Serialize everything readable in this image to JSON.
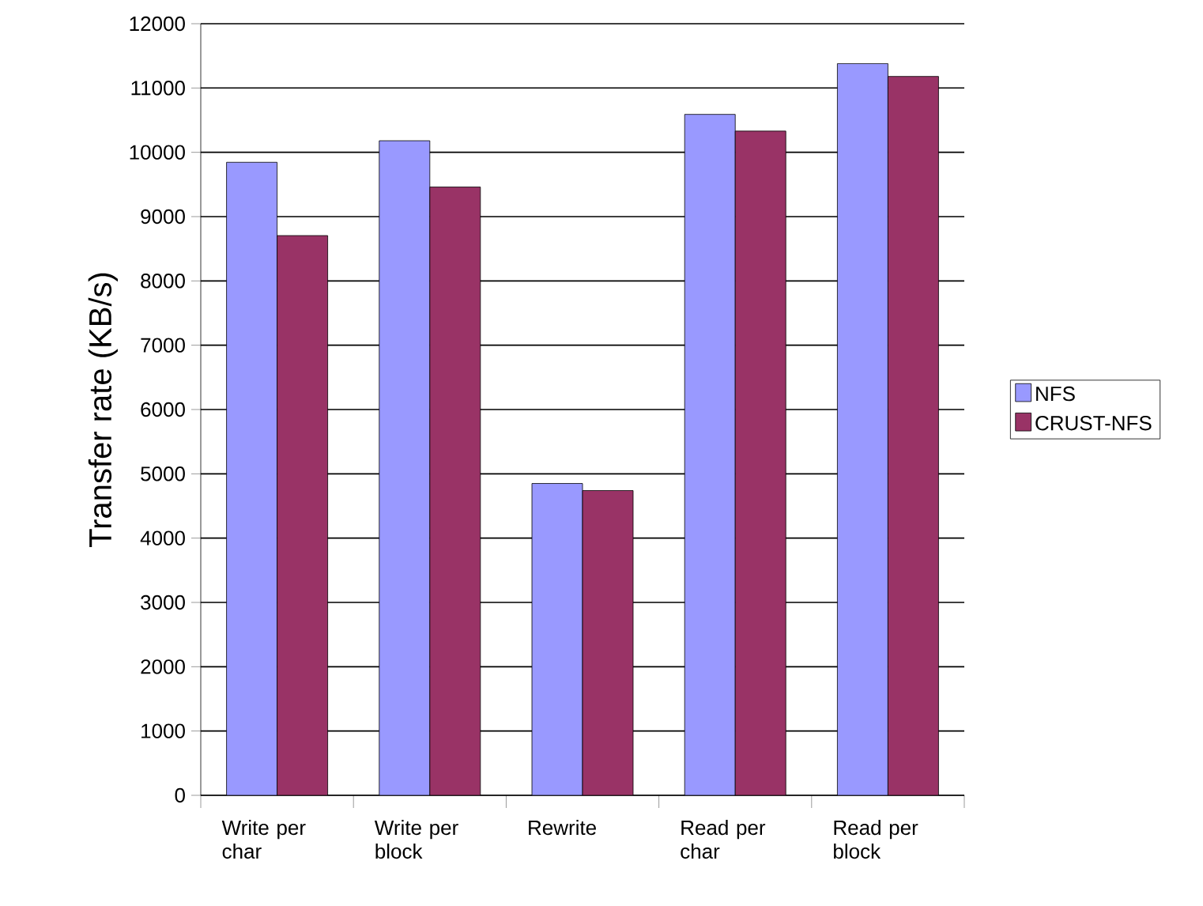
{
  "chart_data": {
    "type": "bar",
    "ylabel": "Transfer rate (KB/s)",
    "categories": [
      "Write per char",
      "Write per block",
      "Rewrite",
      "Read per char",
      "Read per block"
    ],
    "series": [
      {
        "name": "NFS",
        "color": "#9999ff",
        "values": [
          9845,
          10180,
          4850,
          10590,
          11380
        ]
      },
      {
        "name": "CRUST-NFS",
        "color": "#993366",
        "values": [
          8705,
          9460,
          4740,
          10330,
          11180
        ]
      }
    ],
    "ylim": [
      0,
      12000
    ],
    "yticks": [
      0,
      1000,
      2000,
      3000,
      4000,
      5000,
      6000,
      7000,
      8000,
      9000,
      10000,
      11000,
      12000
    ],
    "grid": "y",
    "legend": "right"
  }
}
